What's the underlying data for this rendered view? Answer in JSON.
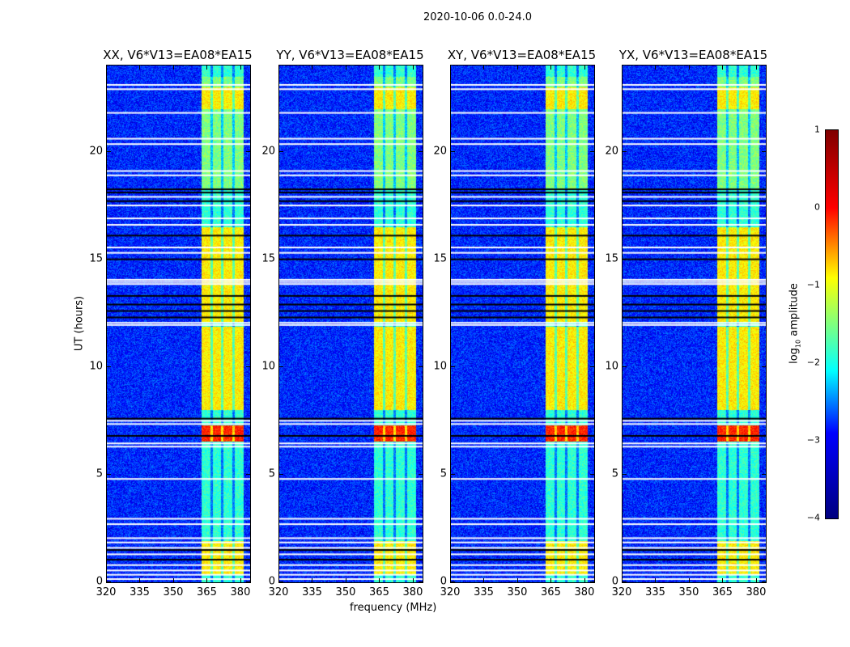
{
  "chart_data": {
    "type": "heatmap",
    "title": "2020-10-06 0.0-24.0",
    "xlabel": "frequency (MHz)",
    "ylabel": "UT (hours)",
    "xlim": [
      320,
      384
    ],
    "ylim": [
      0,
      24
    ],
    "xticks": [
      "320",
      "335",
      "350",
      "365",
      "380"
    ],
    "yticks": [
      "0",
      "5",
      "10",
      "15",
      "20"
    ],
    "panels": [
      {
        "title": "XX, V6*V13=EA08*EA15"
      },
      {
        "title": "YY, V6*V13=EA08*EA15"
      },
      {
        "title": "XY, V6*V13=EA08*EA15"
      },
      {
        "title": "YX, V6*V13=EA08*EA15"
      }
    ],
    "colorbar": {
      "label": "log10 amplitude",
      "label_main": "log",
      "label_sub": "10",
      "label_tail": " amplitude",
      "range": [
        -4,
        1
      ],
      "ticks": [
        "1",
        "0",
        "−1",
        "−2",
        "−3",
        "−4"
      ]
    },
    "background_level": -3.2,
    "rfi_band_mhz": [
      362,
      381
    ],
    "rfi_column_gaps_mhz": [
      366.5,
      371.5,
      376.5
    ],
    "flagged_white_ut": [
      0.15,
      0.35,
      0.55,
      0.8,
      1.3,
      1.6,
      1.85,
      2.05,
      2.7,
      2.95,
      4.8,
      6.3,
      6.45,
      7.35,
      7.5,
      11.95,
      12.05,
      13.85,
      13.95,
      14.05,
      15.3,
      15.55,
      16.6,
      16.9,
      17.5,
      17.9,
      20.35,
      20.6,
      19.1,
      18.9,
      21.8,
      22.9,
      23.1
    ],
    "flagged_black_ut": [
      1.05,
      1.5,
      6.8,
      7.6,
      12.3,
      12.6,
      12.9,
      13.3,
      15.0,
      16.1,
      17.7,
      18.1,
      18.25
    ]
  }
}
